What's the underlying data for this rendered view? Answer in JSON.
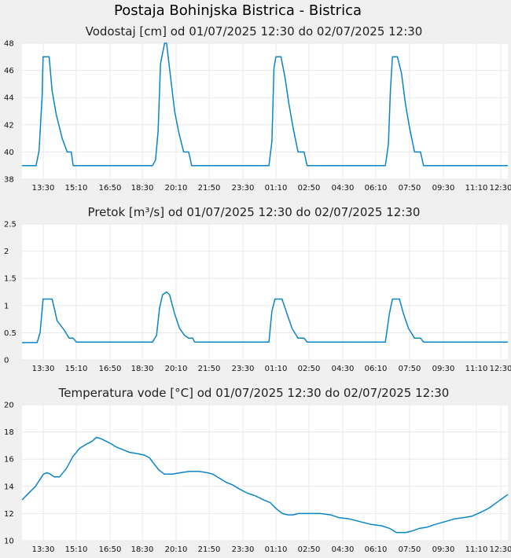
{
  "page": {
    "title": "Postaja Bohinjska Bistrica - Bistrica"
  },
  "series_color": "#0a84c8",
  "chart_data": [
    {
      "type": "line",
      "title": "Vodostaj [cm] od 01/07/2025 12:30 do 02/07/2025 12:30",
      "x_tick_labels": [
        "13:30",
        "15:10",
        "16:50",
        "18:30",
        "20:10",
        "21:50",
        "23:30",
        "01:10",
        "02:50",
        "04:30",
        "06:10",
        "07:50",
        "09:30",
        "11:10",
        "12:30"
      ],
      "y_ticks": [
        38,
        40,
        42,
        44,
        46,
        48
      ],
      "ylim": [
        38,
        48
      ],
      "grid": true,
      "series": [
        {
          "values": [
            [
              0,
              39
            ],
            [
              0.7,
              39
            ],
            [
              0.85,
              40.1
            ],
            [
              1.0,
              44
            ],
            [
              1.05,
              47
            ],
            [
              1.2,
              47
            ],
            [
              1.35,
              47
            ],
            [
              1.5,
              44.5
            ],
            [
              1.7,
              42.8
            ],
            [
              2.0,
              41
            ],
            [
              2.25,
              40
            ],
            [
              2.45,
              40
            ],
            [
              2.55,
              39
            ],
            [
              4,
              39
            ],
            [
              6.5,
              39
            ],
            [
              6.65,
              39.4
            ],
            [
              6.78,
              41.5
            ],
            [
              6.9,
              46.5
            ],
            [
              7.1,
              48
            ],
            [
              7.2,
              48
            ],
            [
              7.4,
              45.5
            ],
            [
              7.6,
              43
            ],
            [
              7.8,
              41.5
            ],
            [
              8.05,
              40
            ],
            [
              8.3,
              40
            ],
            [
              8.45,
              39
            ],
            [
              10,
              39
            ],
            [
              12.3,
              39
            ],
            [
              12.45,
              40.8
            ],
            [
              12.55,
              46.2
            ],
            [
              12.65,
              47
            ],
            [
              12.9,
              47
            ],
            [
              13.1,
              45.5
            ],
            [
              13.3,
              43.5
            ],
            [
              13.5,
              41.8
            ],
            [
              13.75,
              40
            ],
            [
              14.05,
              40
            ],
            [
              14.2,
              39
            ],
            [
              16,
              39
            ],
            [
              18.1,
              39
            ],
            [
              18.25,
              40.6
            ],
            [
              18.35,
              44.5
            ],
            [
              18.45,
              47
            ],
            [
              18.7,
              47
            ],
            [
              18.9,
              45.8
            ],
            [
              19.1,
              43.5
            ],
            [
              19.3,
              41.8
            ],
            [
              19.55,
              40
            ],
            [
              19.85,
              40
            ],
            [
              20.0,
              39
            ],
            [
              22,
              39
            ],
            [
              24.2,
              39
            ]
          ]
        }
      ]
    },
    {
      "type": "line",
      "title": "Pretok [m³/s] od 01/07/2025 12:30 do 02/07/2025 12:30",
      "x_tick_labels": [
        "13:30",
        "15:10",
        "16:50",
        "18:30",
        "20:10",
        "21:50",
        "23:30",
        "01:10",
        "02:50",
        "04:30",
        "06:10",
        "07:50",
        "09:30",
        "11:10",
        "12:30"
      ],
      "y_ticks": [
        0,
        0.5,
        1,
        1.5,
        2,
        2.5
      ],
      "y_tick_labels": [
        "0",
        "0.5",
        "1",
        "1.5",
        "2",
        "2.5"
      ],
      "ylim": [
        0,
        2.5
      ],
      "grid": true,
      "series": [
        {
          "values": [
            [
              0,
              0.32
            ],
            [
              0.75,
              0.32
            ],
            [
              0.9,
              0.5
            ],
            [
              1.05,
              1.12
            ],
            [
              1.5,
              1.12
            ],
            [
              1.75,
              0.72
            ],
            [
              2.1,
              0.55
            ],
            [
              2.35,
              0.4
            ],
            [
              2.55,
              0.4
            ],
            [
              2.7,
              0.33
            ],
            [
              4,
              0.33
            ],
            [
              6.5,
              0.33
            ],
            [
              6.7,
              0.45
            ],
            [
              6.85,
              0.95
            ],
            [
              7.0,
              1.2
            ],
            [
              7.2,
              1.25
            ],
            [
              7.35,
              1.2
            ],
            [
              7.6,
              0.85
            ],
            [
              7.85,
              0.58
            ],
            [
              8.1,
              0.45
            ],
            [
              8.3,
              0.4
            ],
            [
              8.5,
              0.4
            ],
            [
              8.6,
              0.33
            ],
            [
              10,
              0.33
            ],
            [
              12.3,
              0.33
            ],
            [
              12.45,
              0.9
            ],
            [
              12.6,
              1.12
            ],
            [
              12.95,
              1.12
            ],
            [
              13.2,
              0.85
            ],
            [
              13.45,
              0.58
            ],
            [
              13.75,
              0.4
            ],
            [
              14.05,
              0.4
            ],
            [
              14.2,
              0.33
            ],
            [
              16,
              0.33
            ],
            [
              18.1,
              0.33
            ],
            [
              18.3,
              0.85
            ],
            [
              18.45,
              1.12
            ],
            [
              18.8,
              1.12
            ],
            [
              19.0,
              0.85
            ],
            [
              19.25,
              0.58
            ],
            [
              19.55,
              0.4
            ],
            [
              19.85,
              0.4
            ],
            [
              20.0,
              0.33
            ],
            [
              22,
              0.33
            ],
            [
              24.2,
              0.33
            ]
          ]
        }
      ]
    },
    {
      "type": "line",
      "title": "Temperatura vode [°C] od 01/07/2025 12:30 do 02/07/2025 12:30",
      "x_tick_labels": [
        "13:30",
        "15:10",
        "16:50",
        "18:30",
        "20:10",
        "21:50",
        "23:30",
        "01:10",
        "02:50",
        "04:30",
        "06:10",
        "07:50",
        "09:30",
        "11:10",
        "12:30"
      ],
      "y_ticks": [
        10,
        12,
        14,
        16,
        18,
        20
      ],
      "ylim": [
        10,
        20
      ],
      "grid": true,
      "series": [
        {
          "values": [
            [
              0,
              13
            ],
            [
              0.4,
              13.4
            ],
            [
              1.0,
              14
            ],
            [
              1.6,
              14.9
            ],
            [
              1.85,
              15
            ],
            [
              2.1,
              14.9
            ],
            [
              2.4,
              14.7
            ],
            [
              2.8,
              14.7
            ],
            [
              3.3,
              15.3
            ],
            [
              3.8,
              16.2
            ],
            [
              4.3,
              16.8
            ],
            [
              4.8,
              17.1
            ],
            [
              5.2,
              17.3
            ],
            [
              5.55,
              17.6
            ],
            [
              5.9,
              17.5
            ],
            [
              6.5,
              17.2
            ],
            [
              7.0,
              16.9
            ],
            [
              7.5,
              16.7
            ],
            [
              8.0,
              16.5
            ],
            [
              8.6,
              16.4
            ],
            [
              9.1,
              16.3
            ],
            [
              9.5,
              16.1
            ],
            [
              9.8,
              15.7
            ],
            [
              10.2,
              15.2
            ],
            [
              10.6,
              14.9
            ],
            [
              11.2,
              14.9
            ],
            [
              11.8,
              15
            ],
            [
              12.5,
              15.1
            ],
            [
              13.2,
              15.1
            ],
            [
              13.8,
              15
            ],
            [
              14.2,
              14.9
            ],
            [
              14.7,
              14.6
            ],
            [
              15.2,
              14.3
            ],
            [
              15.7,
              14.1
            ],
            [
              16.2,
              13.8
            ],
            [
              16.8,
              13.5
            ],
            [
              17.4,
              13.3
            ],
            [
              18.0,
              13.0
            ],
            [
              18.5,
              12.8
            ],
            [
              19.0,
              12.3
            ],
            [
              19.4,
              12.0
            ],
            [
              19.8,
              11.9
            ],
            [
              20.2,
              11.9
            ],
            [
              20.6,
              12.0
            ],
            [
              21.2,
              12.0
            ],
            [
              22.2,
              12.0
            ],
            [
              23.0,
              11.9
            ],
            [
              23.6,
              11.7
            ],
            [
              24.4,
              11.6
            ],
            [
              25.2,
              11.4
            ],
            [
              26.0,
              11.2
            ],
            [
              26.8,
              11.1
            ],
            [
              27.4,
              10.9
            ],
            [
              27.9,
              10.6
            ],
            [
              28.6,
              10.6
            ],
            [
              29.0,
              10.7
            ],
            [
              29.6,
              10.9
            ],
            [
              30.2,
              11.0
            ],
            [
              30.8,
              11.2
            ],
            [
              31.5,
              11.4
            ],
            [
              32.2,
              11.6
            ],
            [
              32.9,
              11.7
            ],
            [
              33.5,
              11.8
            ],
            [
              34.2,
              12.1
            ],
            [
              34.8,
              12.4
            ],
            [
              35.5,
              12.9
            ],
            [
              36.2,
              13.4
            ]
          ]
        }
      ]
    }
  ]
}
